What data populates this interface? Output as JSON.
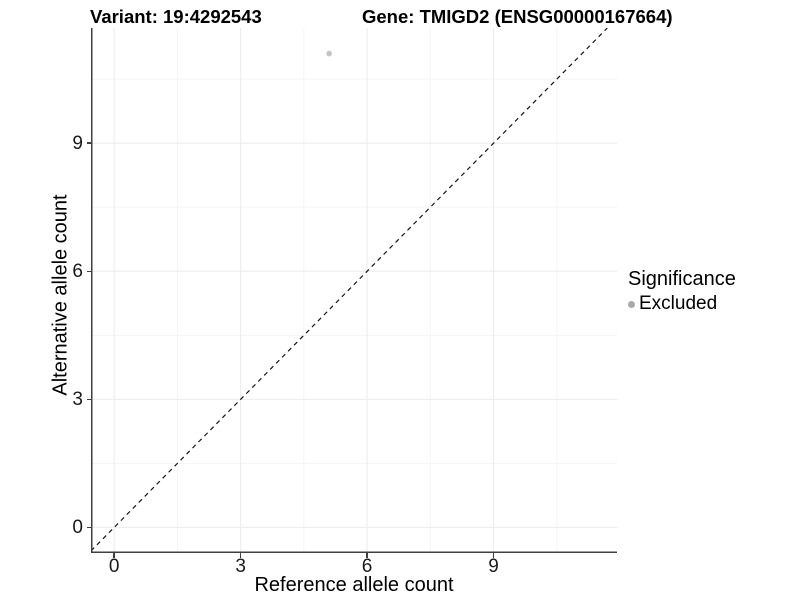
{
  "title": {
    "variant_part": "Variant: 19:4292543",
    "gene_part": "Gene: TMIGD2 (ENSG00000167664)"
  },
  "axes": {
    "x_label": "Reference allele count",
    "y_label": "Alternative allele count",
    "x_tick_labels": [
      "0",
      "3",
      "6",
      "9"
    ],
    "y_tick_labels": [
      "0",
      "3",
      "6",
      "9"
    ]
  },
  "legend": {
    "title": "Significance",
    "items": [
      {
        "label": "Excluded"
      }
    ]
  },
  "colors": {
    "point": "#c5c5c5",
    "legend_dot": "#a9a9a9",
    "axis_line": "#3f3f3f",
    "grid_major": "#ebebeb",
    "grid_minor": "#f5f5f5",
    "dashed_line": "#141414",
    "text": "#000000"
  },
  "chart_data": {
    "type": "scatter",
    "title": "Variant: 19:4292543   Gene: TMIGD2 (ENSG00000167664)",
    "xlabel": "Reference allele count",
    "ylabel": "Alternative allele count",
    "x_ticks": [
      0,
      3,
      6,
      9
    ],
    "y_ticks": [
      0,
      3,
      6,
      9
    ],
    "x_minor_ticks": [
      1.5,
      4.5,
      7.5,
      10.5
    ],
    "y_minor_ticks": [
      1.5,
      4.5,
      7.5,
      10.5
    ],
    "xlim": [
      -0.55,
      11.93
    ],
    "ylim": [
      -0.6,
      11.7
    ],
    "grid": true,
    "legend_position": "right",
    "series": [
      {
        "name": "Excluded",
        "points": [
          {
            "x": 5.1,
            "y": 11.1
          }
        ]
      }
    ],
    "reference_line": {
      "type": "identity y=x",
      "style": "dashed"
    }
  }
}
